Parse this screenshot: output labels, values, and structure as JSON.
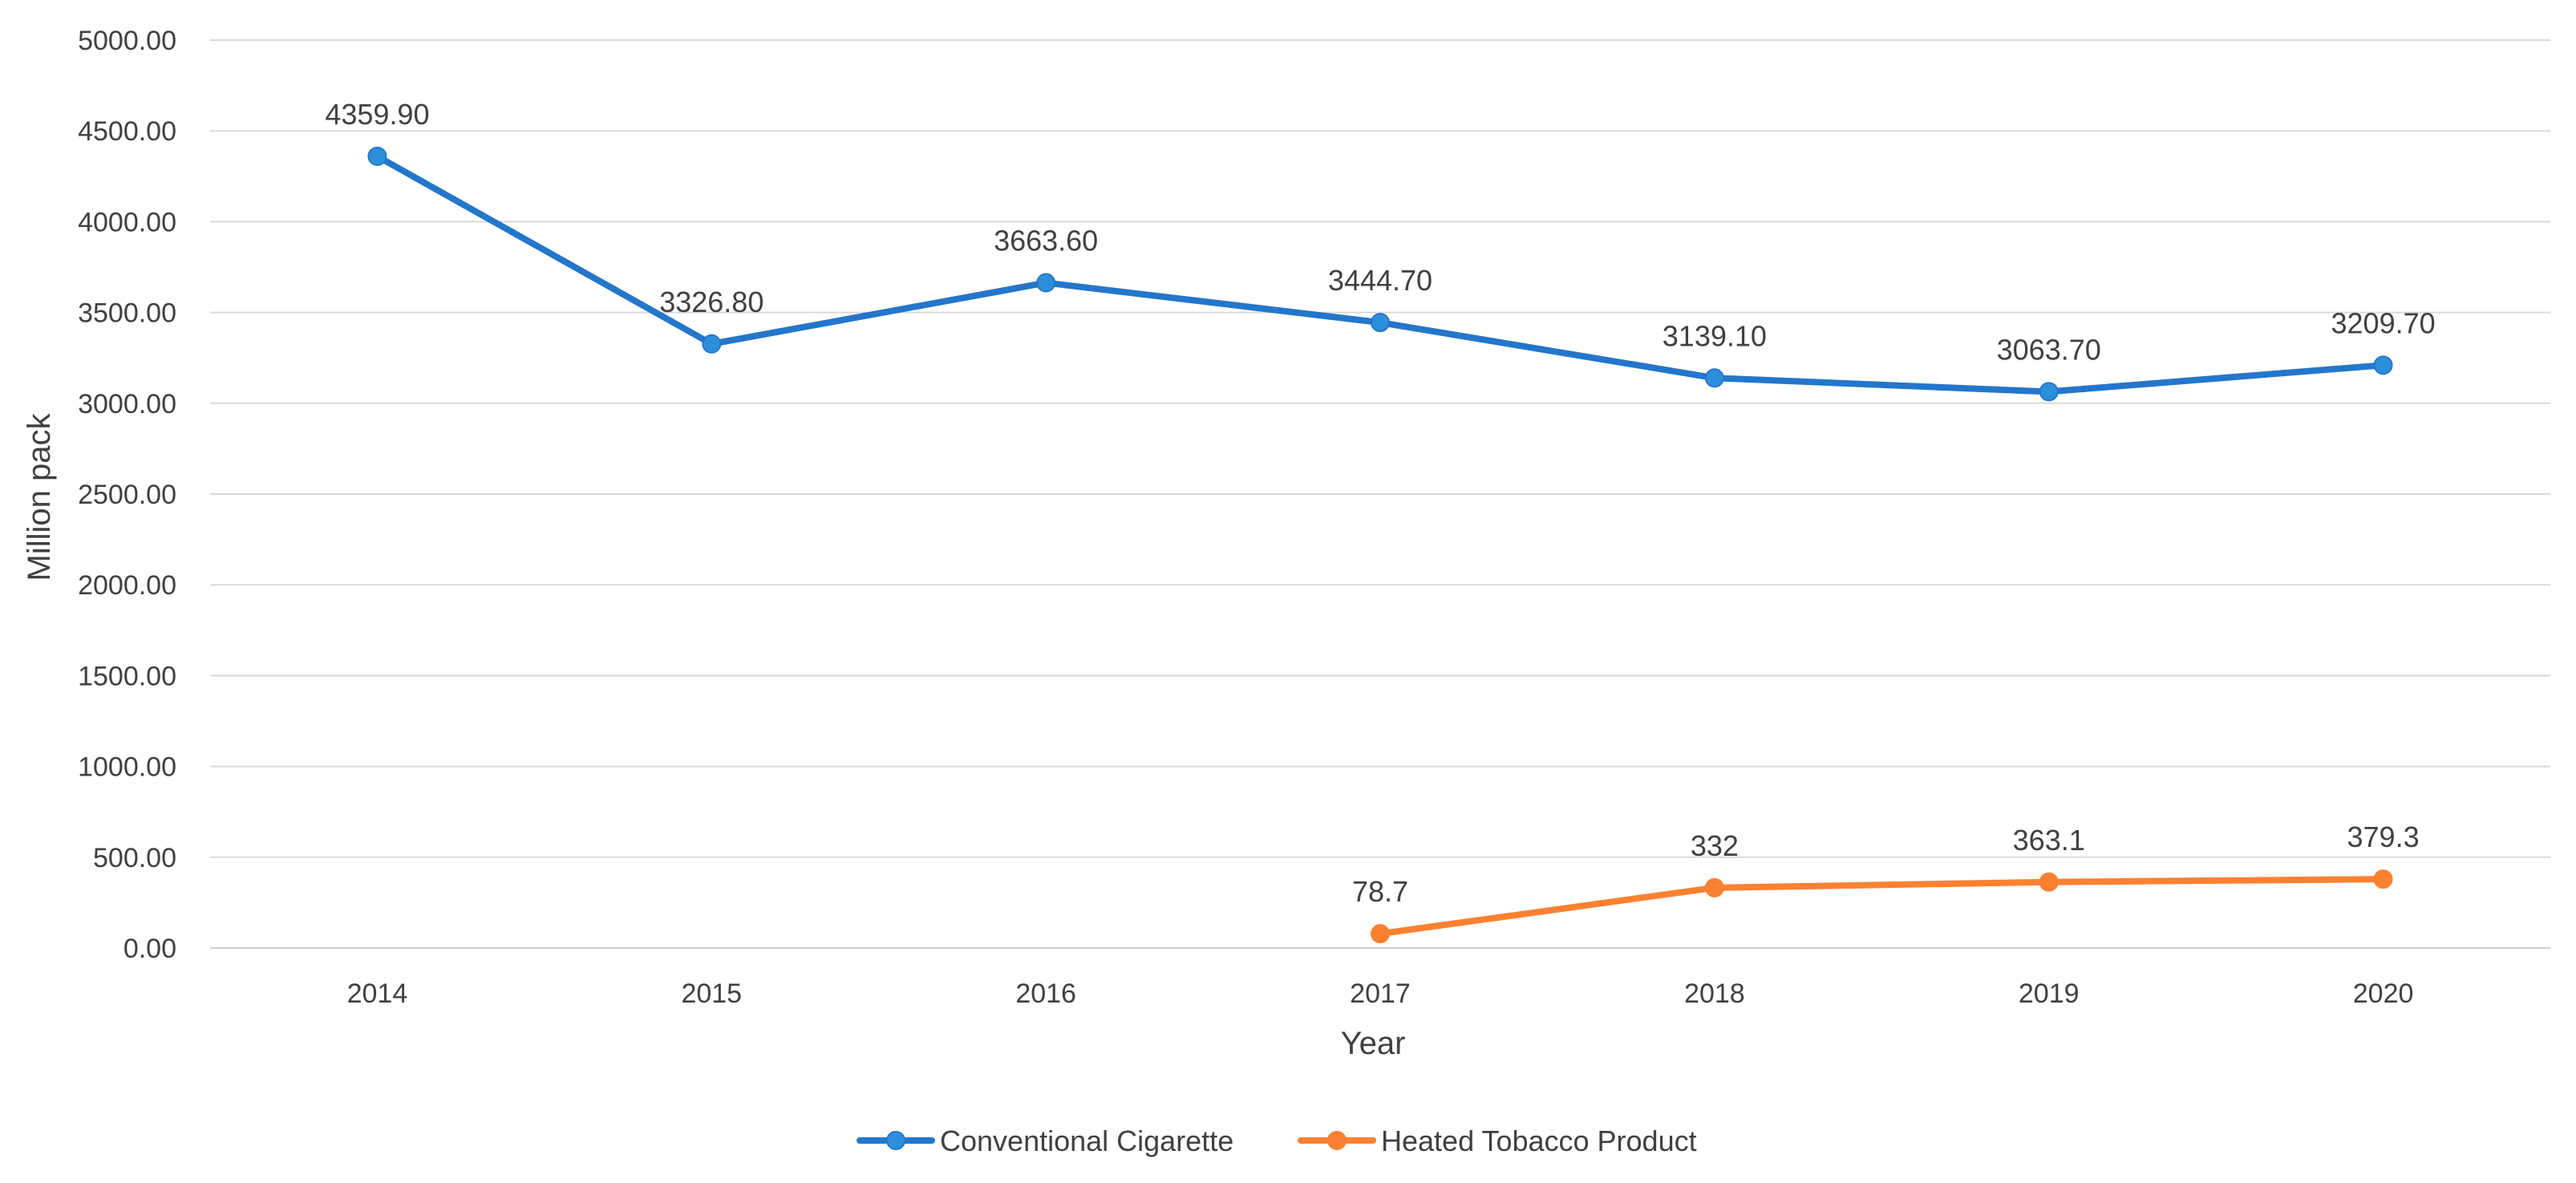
{
  "chart_data": {
    "type": "line",
    "title": "",
    "xlabel": "Year",
    "ylabel": "Million pack",
    "ylim": [
      0,
      5000
    ],
    "y_ticks": [
      "0.00",
      "500.00",
      "1000.00",
      "1500.00",
      "2000.00",
      "2500.00",
      "3000.00",
      "3500.00",
      "4000.00",
      "4500.00",
      "5000.00"
    ],
    "categories": [
      "2014",
      "2015",
      "2016",
      "2017",
      "2018",
      "2019",
      "2020"
    ],
    "grid": "horizontal",
    "legend_position": "bottom",
    "series": [
      {
        "name": "Conventional Cigarette",
        "color": "#2476CB",
        "marker_color": "#2C8FDB",
        "values": [
          4359.9,
          3326.8,
          3663.6,
          3444.7,
          3139.1,
          3063.7,
          3209.7
        ],
        "labels": [
          "4359.90",
          "3326.80",
          "3663.60",
          "3444.70",
          "3139.10",
          "3063.70",
          "3209.70"
        ]
      },
      {
        "name": "Heated Tobacco Product",
        "color": "#FB8131",
        "marker_color": "#FB8131",
        "values": [
          null,
          null,
          null,
          78.7,
          332,
          363.1,
          379.3
        ],
        "labels": [
          null,
          null,
          null,
          "78.7",
          "332",
          "363.1",
          "379.3"
        ]
      }
    ]
  }
}
